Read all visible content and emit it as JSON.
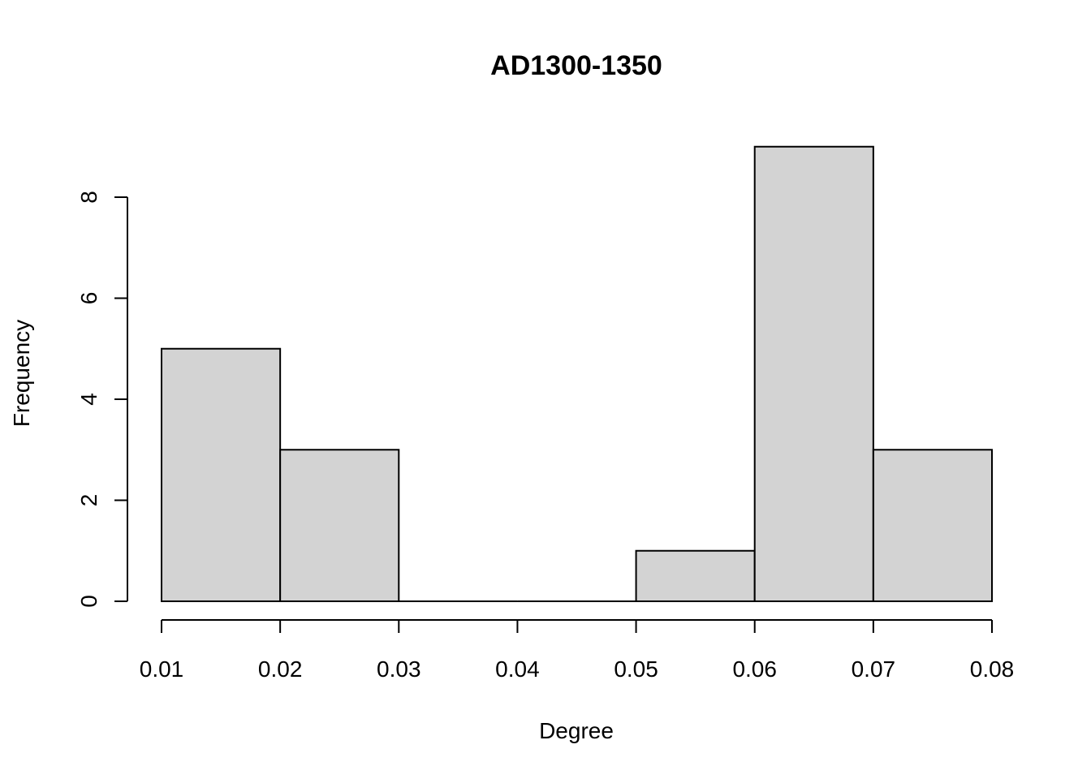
{
  "chart_data": {
    "type": "bar",
    "title": "AD1300-1350",
    "xlabel": "Degree",
    "ylabel": "Frequency",
    "bins": [
      {
        "start": 0.01,
        "end": 0.02,
        "count": 5
      },
      {
        "start": 0.02,
        "end": 0.03,
        "count": 3
      },
      {
        "start": 0.03,
        "end": 0.04,
        "count": 0
      },
      {
        "start": 0.04,
        "end": 0.05,
        "count": 0
      },
      {
        "start": 0.05,
        "end": 0.06,
        "count": 1
      },
      {
        "start": 0.06,
        "end": 0.07,
        "count": 9
      },
      {
        "start": 0.07,
        "end": 0.08,
        "count": 3
      }
    ],
    "xlim": [
      0.01,
      0.08
    ],
    "ylim": [
      0,
      8
    ],
    "xticks": [
      "0.01",
      "0.02",
      "0.03",
      "0.04",
      "0.05",
      "0.06",
      "0.07",
      "0.08"
    ],
    "yticks": [
      "0",
      "2",
      "4",
      "6",
      "8"
    ],
    "bar_color": "#d3d3d3",
    "grid": false
  }
}
